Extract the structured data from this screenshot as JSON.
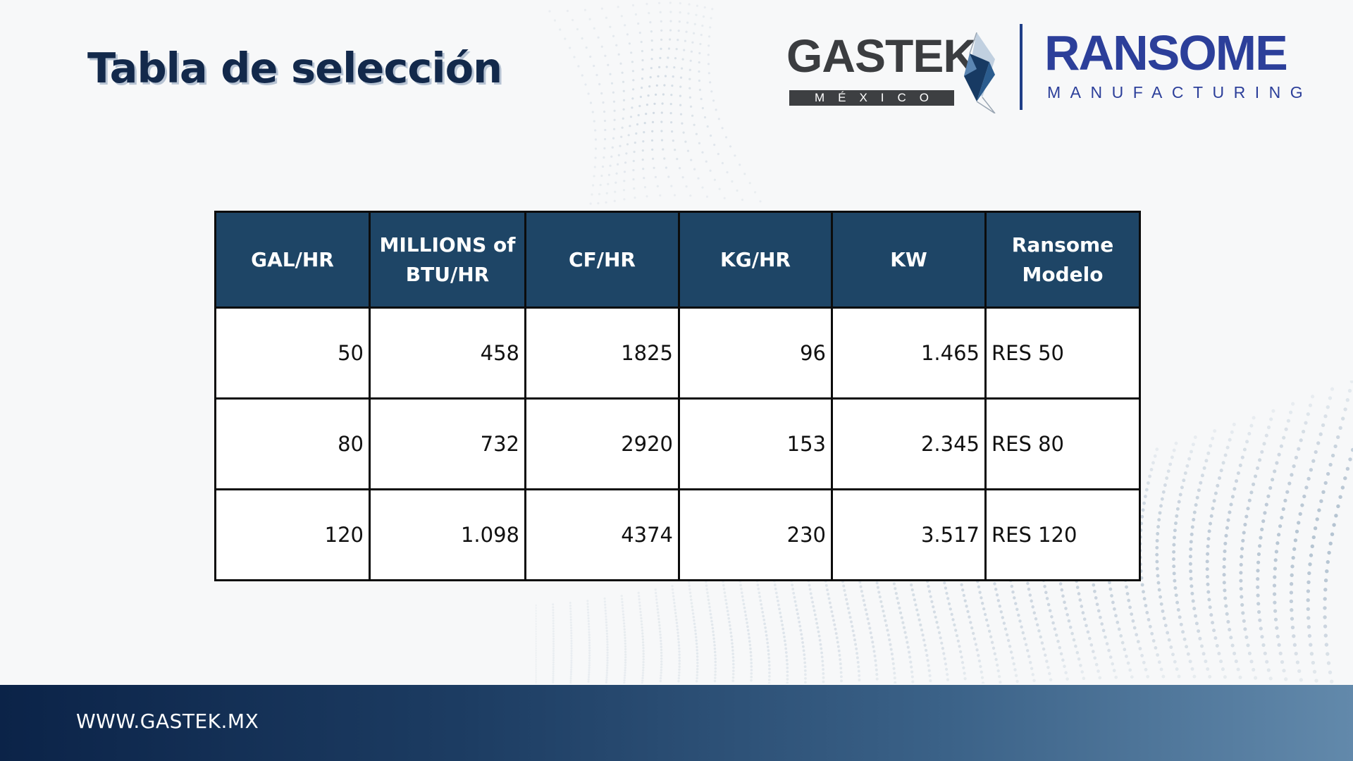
{
  "page": {
    "title": "Tabla de selección"
  },
  "logos": {
    "gastek": {
      "word": "GASTEK",
      "sub": "MÉXICO"
    },
    "ransome": {
      "word": "RANSOME",
      "sub": "MANUFACTURING"
    }
  },
  "table": {
    "headers": [
      [
        "GAL/HR"
      ],
      [
        "MILLIONS of",
        "BTU/HR"
      ],
      [
        "CF/HR"
      ],
      [
        "KG/HR"
      ],
      [
        "KW"
      ],
      [
        "Ransome",
        "Modelo"
      ]
    ],
    "rows": [
      [
        "50",
        "458",
        "1825",
        "96",
        "1.465",
        "RES 50"
      ],
      [
        "80",
        "732",
        "2920",
        "153",
        "2.345",
        "RES 80"
      ],
      [
        "120",
        "1.098",
        "4374",
        "230",
        "3.517",
        "RES 120"
      ]
    ]
  },
  "colors": {
    "title": "#13294b",
    "header_bg": "#1e4566",
    "ransome_blue": "#2c3f9a",
    "footer_start": "#0b2348",
    "footer_end": "#6289ab"
  },
  "footer": {
    "url": "WWW.GASTEK.MX"
  }
}
